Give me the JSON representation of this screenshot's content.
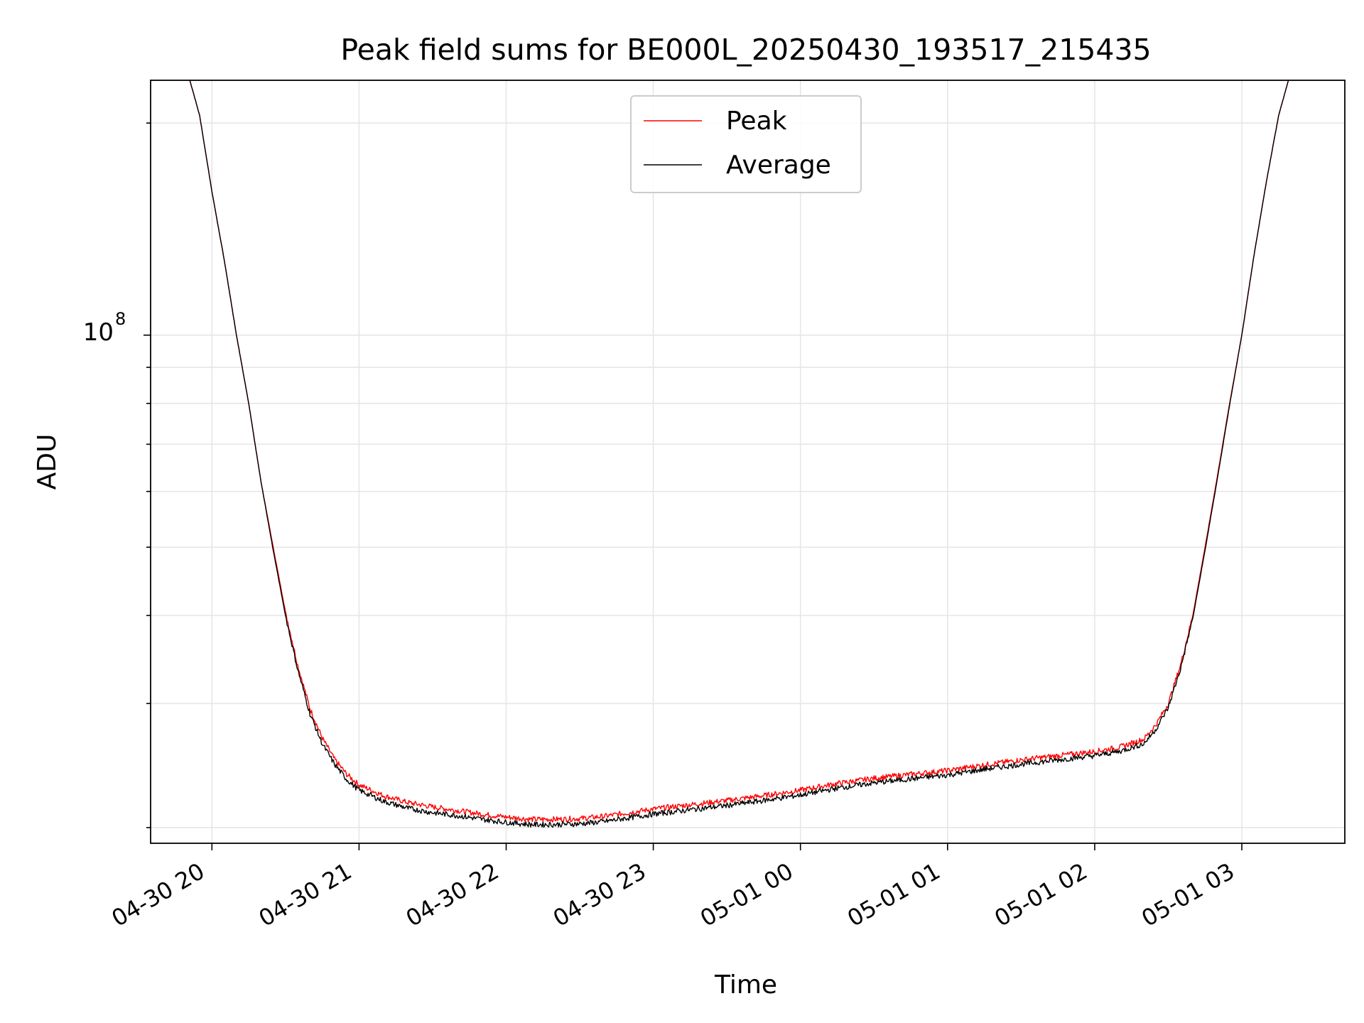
{
  "chart_data": {
    "type": "line",
    "title": "Peak field sums for BE000L_20250430_193517_215435",
    "xlabel": "Time",
    "ylabel": "ADU",
    "yscale": "log",
    "grid": true,
    "legend_position": "upper center",
    "x_ticks": [
      "04-30 20",
      "04-30 21",
      "04-30 22",
      "04-30 23",
      "05-01 00",
      "05-01 01",
      "05-01 02",
      "05-01 03"
    ],
    "y_tick_label": {
      "base": "10",
      "exponent": "8",
      "value": 100000000
    },
    "xlim": [
      "2025-04-30T19:35",
      "2025-05-01T03:42"
    ],
    "ylim": [
      19000000,
      230000000
    ],
    "series": [
      {
        "name": "Peak",
        "color": "#ff0000",
        "points": [
          [
            "2025-04-30T19:51",
            230000000
          ],
          [
            "2025-04-30T19:55",
            205000000
          ],
          [
            "2025-04-30T20:00",
            160000000
          ],
          [
            "2025-04-30T20:05",
            128000000
          ],
          [
            "2025-04-30T20:10",
            100000000
          ],
          [
            "2025-04-30T20:15",
            80000000
          ],
          [
            "2025-04-30T20:20",
            62000000
          ],
          [
            "2025-04-30T20:25",
            50000000
          ],
          [
            "2025-04-30T20:30",
            40500000
          ],
          [
            "2025-04-30T20:35",
            34000000
          ],
          [
            "2025-04-30T20:40",
            29500000
          ],
          [
            "2025-04-30T20:45",
            26800000
          ],
          [
            "2025-04-30T20:50",
            25000000
          ],
          [
            "2025-04-30T20:55",
            23800000
          ],
          [
            "2025-04-30T21:00",
            23000000
          ],
          [
            "2025-04-30T21:10",
            22200000
          ],
          [
            "2025-04-30T21:20",
            21700000
          ],
          [
            "2025-04-30T21:30",
            21400000
          ],
          [
            "2025-04-30T21:40",
            21150000
          ],
          [
            "2025-04-30T21:50",
            20900000
          ],
          [
            "2025-04-30T22:00",
            20700000
          ],
          [
            "2025-04-30T22:10",
            20550000
          ],
          [
            "2025-04-30T22:20",
            20550000
          ],
          [
            "2025-04-30T22:30",
            20600000
          ],
          [
            "2025-04-30T22:40",
            20750000
          ],
          [
            "2025-04-30T22:50",
            21000000
          ],
          [
            "2025-04-30T23:00",
            21250000
          ],
          [
            "2025-04-30T23:15",
            21550000
          ],
          [
            "2025-04-30T23:30",
            21850000
          ],
          [
            "2025-04-30T23:45",
            22200000
          ],
          [
            "2025-05-01T00:00",
            22600000
          ],
          [
            "2025-05-01T00:15",
            23100000
          ],
          [
            "2025-05-01T00:30",
            23500000
          ],
          [
            "2025-05-01T00:45",
            23800000
          ],
          [
            "2025-05-01T01:00",
            24100000
          ],
          [
            "2025-05-01T01:15",
            24550000
          ],
          [
            "2025-05-01T01:30",
            24950000
          ],
          [
            "2025-05-01T01:45",
            25300000
          ],
          [
            "2025-05-01T02:00",
            25650000
          ],
          [
            "2025-05-01T02:10",
            26000000
          ],
          [
            "2025-05-01T02:20",
            26700000
          ],
          [
            "2025-05-01T02:25",
            28000000
          ],
          [
            "2025-05-01T02:30",
            30000000
          ],
          [
            "2025-05-01T02:35",
            34000000
          ],
          [
            "2025-05-01T02:40",
            40000000
          ],
          [
            "2025-05-01T02:45",
            50000000
          ],
          [
            "2025-05-01T02:50",
            63000000
          ],
          [
            "2025-05-01T02:55",
            80000000
          ],
          [
            "2025-05-01T03:00",
            100000000
          ],
          [
            "2025-05-01T03:05",
            130000000
          ],
          [
            "2025-05-01T03:10",
            165000000
          ],
          [
            "2025-05-01T03:15",
            205000000
          ],
          [
            "2025-05-01T03:19",
            230000000
          ]
        ]
      },
      {
        "name": "Average",
        "color": "#000000",
        "points": [
          [
            "2025-04-30T19:51",
            230000000
          ],
          [
            "2025-04-30T19:55",
            205000000
          ],
          [
            "2025-04-30T20:00",
            160000000
          ],
          [
            "2025-04-30T20:05",
            128000000
          ],
          [
            "2025-04-30T20:10",
            100000000
          ],
          [
            "2025-04-30T20:15",
            80000000
          ],
          [
            "2025-04-30T20:20",
            62000000
          ],
          [
            "2025-04-30T20:25",
            49500000
          ],
          [
            "2025-04-30T20:30",
            40000000
          ],
          [
            "2025-04-30T20:35",
            33500000
          ],
          [
            "2025-04-30T20:40",
            29000000
          ],
          [
            "2025-04-30T20:45",
            26300000
          ],
          [
            "2025-04-30T20:50",
            24600000
          ],
          [
            "2025-04-30T20:55",
            23400000
          ],
          [
            "2025-04-30T21:00",
            22600000
          ],
          [
            "2025-04-30T21:10",
            21800000
          ],
          [
            "2025-04-30T21:20",
            21300000
          ],
          [
            "2025-04-30T21:30",
            21000000
          ],
          [
            "2025-04-30T21:40",
            20800000
          ],
          [
            "2025-04-30T21:50",
            20550000
          ],
          [
            "2025-04-30T22:00",
            20350000
          ],
          [
            "2025-04-30T22:10",
            20200000
          ],
          [
            "2025-04-30T22:20",
            20200000
          ],
          [
            "2025-04-30T22:30",
            20250000
          ],
          [
            "2025-04-30T22:40",
            20400000
          ],
          [
            "2025-04-30T22:50",
            20650000
          ],
          [
            "2025-04-30T23:00",
            20900000
          ],
          [
            "2025-04-30T23:15",
            21200000
          ],
          [
            "2025-04-30T23:30",
            21500000
          ],
          [
            "2025-04-30T23:45",
            21850000
          ],
          [
            "2025-05-01T00:00",
            22250000
          ],
          [
            "2025-05-01T00:15",
            22750000
          ],
          [
            "2025-05-01T00:30",
            23150000
          ],
          [
            "2025-05-01T00:45",
            23450000
          ],
          [
            "2025-05-01T01:00",
            23750000
          ],
          [
            "2025-05-01T01:15",
            24200000
          ],
          [
            "2025-05-01T01:30",
            24600000
          ],
          [
            "2025-05-01T01:45",
            24950000
          ],
          [
            "2025-05-01T02:00",
            25300000
          ],
          [
            "2025-05-01T02:10",
            25650000
          ],
          [
            "2025-05-01T02:20",
            26300000
          ],
          [
            "2025-05-01T02:25",
            27600000
          ],
          [
            "2025-05-01T02:30",
            29600000
          ],
          [
            "2025-05-01T02:35",
            33600000
          ],
          [
            "2025-05-01T02:40",
            39600000
          ],
          [
            "2025-05-01T02:45",
            49500000
          ],
          [
            "2025-05-01T02:50",
            62500000
          ],
          [
            "2025-05-01T02:55",
            79500000
          ],
          [
            "2025-05-01T03:00",
            100000000
          ],
          [
            "2025-05-01T03:05",
            130000000
          ],
          [
            "2025-05-01T03:10",
            165000000
          ],
          [
            "2025-05-01T03:15",
            205000000
          ],
          [
            "2025-05-01T03:19",
            230000000
          ]
        ]
      }
    ]
  }
}
